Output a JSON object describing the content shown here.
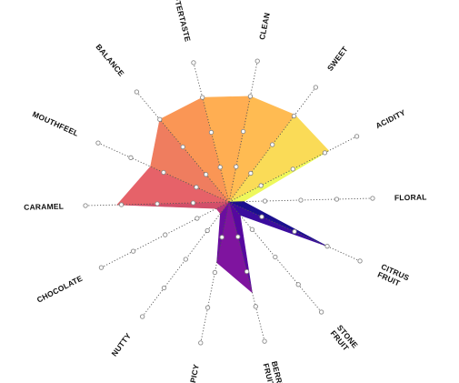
{
  "chart_data": {
    "type": "radar",
    "title": "",
    "max_value": 10,
    "ticks": [
      2.5,
      5,
      7.5,
      10
    ],
    "axes": [
      {
        "label": "CLEAN",
        "value": 7.5
      },
      {
        "label": "SWEET",
        "value": 7.6
      },
      {
        "label": "ACIDITY",
        "value": 7.8
      },
      {
        "label": "FLORAL",
        "value": 1.0
      },
      {
        "label": "CITRUS FRUIT",
        "value": 7.5
      },
      {
        "label": "STONE FRUIT",
        "value": 1.2
      },
      {
        "label": "BERRY FRUIT",
        "value": 6.5
      },
      {
        "label": "SPICY",
        "value": 4.3
      },
      {
        "label": "NUTTY",
        "value": 1.0
      },
      {
        "label": "CHOCOLATE",
        "value": 1.0
      },
      {
        "label": "CARAMEL",
        "value": 7.8
      },
      {
        "label": "MOUTHFEEL",
        "value": 6.0
      },
      {
        "label": "BALANCE",
        "value": 7.5
      },
      {
        "label": "AFTERTASTE",
        "value": 7.5
      }
    ],
    "colors": [
      "#ffbb52",
      "#fadb57",
      "#eef85b",
      "#1a0f8e",
      "#3b0c9e",
      "#56089f",
      "#7f149f",
      "#6a0e9f",
      "#b6327a",
      "#d24f6a",
      "#e66269",
      "#ef7d5f",
      "#fa9655",
      "#ffae52"
    ]
  }
}
